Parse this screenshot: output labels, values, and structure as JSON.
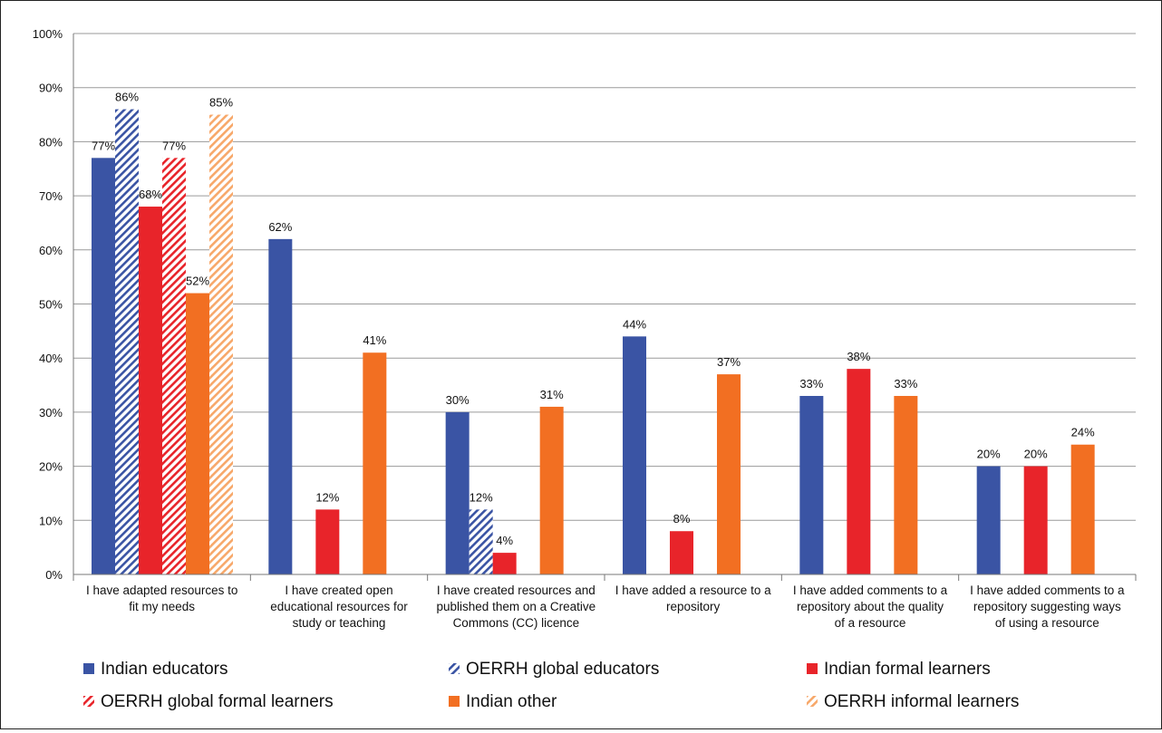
{
  "chart_data": {
    "type": "bar",
    "title": "",
    "xlabel": "",
    "ylabel": "",
    "ylim": [
      0,
      100
    ],
    "yticks": [
      "0%",
      "10%",
      "20%",
      "30%",
      "40%",
      "50%",
      "60%",
      "70%",
      "80%",
      "90%",
      "100%"
    ],
    "grid": true,
    "legend_position": "bottom",
    "categories": [
      [
        "I have adapted resources to",
        "fit my needs"
      ],
      [
        "I have created open",
        "educational resources for",
        "study or teaching"
      ],
      [
        "I have created resources and",
        "published them on a Creative",
        "Commons (CC) licence"
      ],
      [
        "I have added a resource to a",
        "repository"
      ],
      [
        "I have added comments to a",
        "repository about the quality",
        "of a resource"
      ],
      [
        "I have added comments to a",
        "repository suggesting ways",
        "of using a resource"
      ]
    ],
    "series": [
      {
        "name": "Indian educators",
        "color": "#3a54a4",
        "pattern": "solid",
        "values": [
          77,
          62,
          30,
          44,
          33,
          20
        ]
      },
      {
        "name": "OERRH global educators",
        "color": "#3a54a4",
        "pattern": "hatch",
        "values": [
          86,
          null,
          12,
          null,
          null,
          null
        ]
      },
      {
        "name": "Indian formal learners",
        "color": "#e8242a",
        "pattern": "solid",
        "values": [
          68,
          12,
          4,
          8,
          38,
          20
        ]
      },
      {
        "name": "OERRH global formal learners",
        "color": "#e8242a",
        "pattern": "hatch",
        "values": [
          77,
          null,
          null,
          null,
          null,
          null
        ]
      },
      {
        "name": "Indian other",
        "color": "#f26f22",
        "pattern": "solid",
        "values": [
          52,
          41,
          31,
          37,
          33,
          24
        ]
      },
      {
        "name": "OERRH informal learners",
        "color": "#f7a86a",
        "pattern": "hatch",
        "values": [
          85,
          null,
          null,
          null,
          null,
          null
        ]
      }
    ],
    "data_labels": "percent"
  }
}
